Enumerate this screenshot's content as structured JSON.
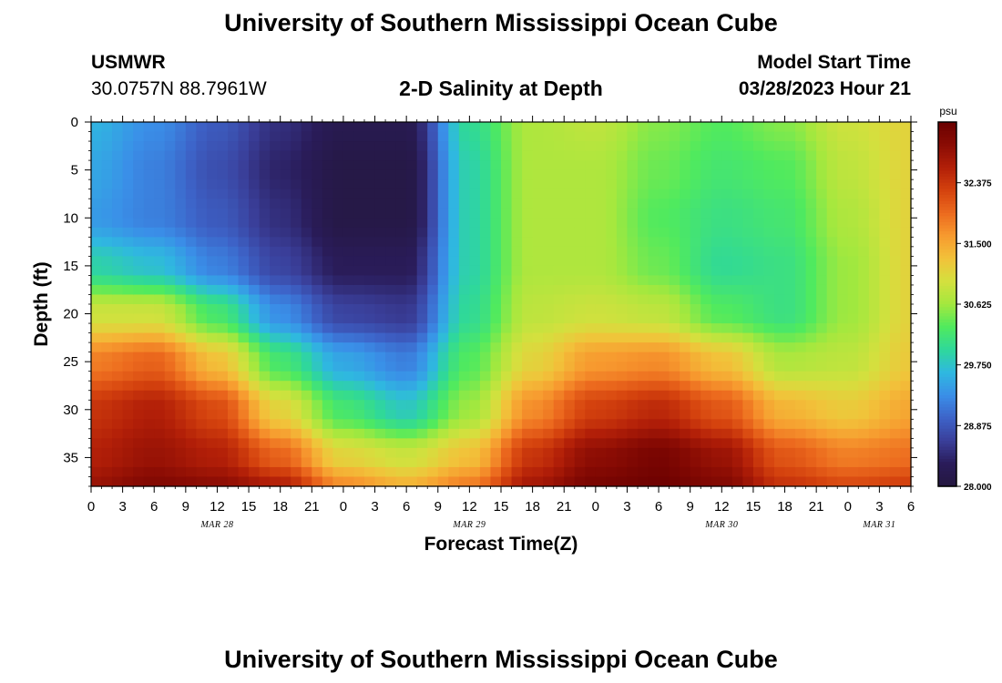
{
  "header": {
    "title": "University of Southern Mississippi Ocean Cube",
    "station_id": "USMWR",
    "coordinates": "30.0757N  88.7961W",
    "chart_title": "2-D Salinity at Depth",
    "model_start_label": "Model Start Time",
    "model_start_value": "03/28/2023 Hour 21"
  },
  "footer": {
    "title": "University of Southern Mississippi Ocean Cube"
  },
  "chart_data": {
    "type": "heatmap",
    "title": "2-D Salinity at Depth",
    "xlabel": "Forecast Time(Z)",
    "ylabel": "Depth (ft)",
    "units": "psu",
    "x_hours_range": [
      0,
      78
    ],
    "x_tick_labels": [
      "0",
      "3",
      "6",
      "9",
      "12",
      "15",
      "18",
      "21",
      "0",
      "3",
      "6",
      "9",
      "12",
      "15",
      "18",
      "21",
      "0",
      "3",
      "6",
      "9",
      "12",
      "15",
      "18",
      "21",
      "0",
      "3",
      "6"
    ],
    "date_labels": [
      "MAR 28",
      "MAR 29",
      "MAR 30",
      "MAR 31"
    ],
    "date_label_hours": [
      12,
      36,
      60,
      75
    ],
    "ylim": [
      0,
      38
    ],
    "y_ticks": [
      0,
      5,
      10,
      15,
      20,
      25,
      30,
      35
    ],
    "colorbar_range": [
      28.0,
      33.25
    ],
    "colorbar_ticks": [
      "28.000",
      "28.875",
      "29.750",
      "30.625",
      "31.500",
      "32.375"
    ],
    "colormap": [
      "#24173f",
      "#2a1c5a",
      "#3a3f9a",
      "#3d63c8",
      "#3a8fe8",
      "#2fb8e0",
      "#2fd89a",
      "#50ea5e",
      "#a4e83e",
      "#d4e03e",
      "#f2c23a",
      "#f79a2f",
      "#ec6a1e",
      "#d4420e",
      "#b21f08",
      "#8a0c04",
      "#6a0000"
    ],
    "depths_ft": [
      0,
      5,
      10,
      15,
      20,
      25,
      30,
      35,
      38
    ],
    "profile_hours": [
      0,
      6,
      12,
      18,
      24,
      30,
      36,
      42,
      48,
      54,
      60,
      66,
      72,
      78
    ],
    "salinity_psu": [
      [
        29.6,
        29.3,
        28.9,
        28.5,
        28.2,
        28.2,
        30.0,
        30.7,
        30.8,
        30.5,
        30.3,
        30.5,
        30.9,
        31.1
      ],
      [
        29.5,
        29.2,
        28.8,
        28.4,
        28.1,
        28.1,
        29.9,
        30.7,
        30.7,
        30.4,
        30.2,
        30.3,
        30.8,
        31.1
      ],
      [
        29.4,
        29.2,
        28.9,
        28.5,
        28.1,
        28.1,
        29.9,
        30.7,
        30.7,
        30.3,
        30.1,
        30.2,
        30.7,
        31.1
      ],
      [
        29.9,
        29.7,
        29.2,
        28.7,
        28.3,
        28.3,
        29.9,
        30.7,
        30.7,
        30.4,
        30.0,
        30.1,
        30.6,
        31.1
      ],
      [
        30.9,
        30.9,
        30.2,
        29.3,
        28.7,
        28.6,
        30.0,
        30.8,
        30.9,
        30.8,
        30.3,
        30.1,
        30.6,
        31.1
      ],
      [
        31.8,
        32.0,
        31.3,
        30.2,
        29.5,
        29.2,
        30.3,
        31.1,
        31.6,
        31.7,
        31.3,
        30.7,
        30.8,
        31.2
      ],
      [
        32.4,
        32.6,
        32.2,
        31.1,
        30.2,
        29.8,
        30.6,
        31.7,
        32.3,
        32.5,
        32.1,
        31.4,
        31.2,
        31.5
      ],
      [
        32.6,
        32.8,
        32.6,
        32.0,
        31.1,
        30.9,
        31.3,
        32.4,
        32.9,
        33.1,
        32.8,
        32.1,
        31.8,
        31.9
      ],
      [
        32.8,
        33.0,
        32.9,
        32.6,
        31.7,
        31.4,
        31.8,
        32.7,
        33.1,
        33.2,
        33.0,
        32.4,
        32.2,
        32.3
      ]
    ]
  }
}
